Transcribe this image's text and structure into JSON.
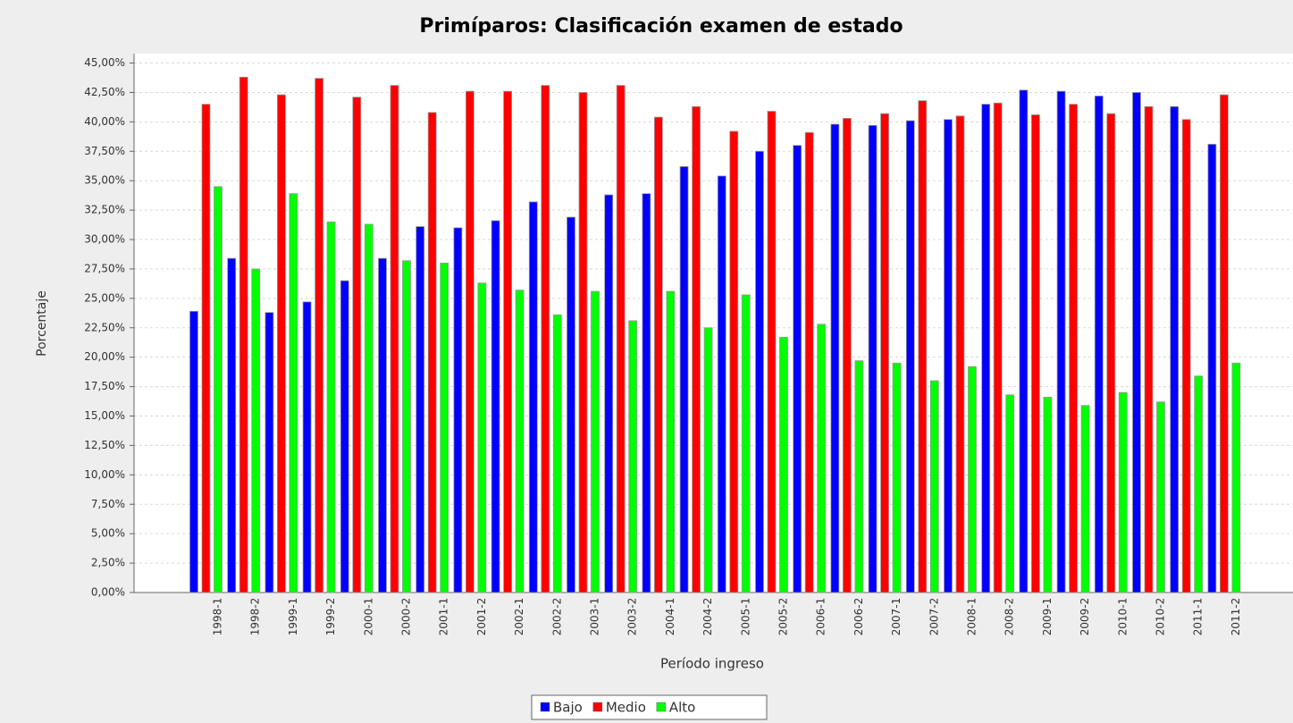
{
  "chart_data": {
    "type": "bar",
    "title": "Primíparos: Clasificación examen de estado",
    "x_label": "Período ingreso",
    "y_label": "Porcentaje",
    "categories": [
      "1998-1",
      "1998-2",
      "1999-1",
      "1999-2",
      "2000-1",
      "2000-2",
      "2001-1",
      "2001-2",
      "2002-1",
      "2002-2",
      "2003-1",
      "2003-2",
      "2004-1",
      "2004-2",
      "2005-1",
      "2005-2",
      "2006-1",
      "2006-2",
      "2007-1",
      "2007-2",
      "2008-1",
      "2008-2",
      "2009-1",
      "2009-2",
      "2010-1",
      "2010-2",
      "2011-1",
      "2011-2"
    ],
    "series": [
      {
        "name": "Bajo",
        "color": "#0000ff",
        "values": [
          23.9,
          28.4,
          23.8,
          24.7,
          26.5,
          28.4,
          31.1,
          31.0,
          31.6,
          33.2,
          31.9,
          33.8,
          33.9,
          36.2,
          35.4,
          37.5,
          38.0,
          39.8,
          39.7,
          40.1,
          40.2,
          41.5,
          42.7,
          42.6,
          42.2,
          42.5,
          41.3,
          38.1
        ]
      },
      {
        "name": "Medio",
        "color": "#ff0000",
        "values": [
          41.5,
          43.8,
          42.3,
          43.7,
          42.1,
          43.1,
          40.8,
          42.6,
          42.6,
          43.1,
          42.5,
          43.1,
          40.4,
          41.3,
          39.2,
          40.9,
          39.1,
          40.3,
          40.7,
          41.8,
          40.5,
          41.6,
          40.6,
          41.5,
          40.7,
          41.3,
          40.2,
          42.3
        ]
      },
      {
        "name": "Alto",
        "color": "#00ff00",
        "values": [
          34.5,
          27.5,
          33.9,
          31.5,
          31.3,
          28.2,
          28.0,
          26.3,
          25.7,
          23.6,
          25.6,
          23.1,
          25.6,
          22.5,
          25.3,
          21.7,
          22.8,
          19.7,
          19.5,
          18.0,
          19.2,
          16.8,
          16.6,
          15.9,
          17.0,
          16.2,
          18.4,
          19.5
        ]
      }
    ],
    "ylim": [
      0,
      45.8
    ],
    "yticks": [
      {
        "value": 0,
        "label": "0,00%"
      },
      {
        "value": 2.5,
        "label": "2,50%"
      },
      {
        "value": 5,
        "label": "5,00%"
      },
      {
        "value": 7.5,
        "label": "7,50%"
      },
      {
        "value": 10,
        "label": "10,00%"
      },
      {
        "value": 12.5,
        "label": "12,50%"
      },
      {
        "value": 15,
        "label": "15,00%"
      },
      {
        "value": 17.5,
        "label": "17,50%"
      },
      {
        "value": 20,
        "label": "20,00%"
      },
      {
        "value": 22.5,
        "label": "22,50%"
      },
      {
        "value": 25,
        "label": "25,00%"
      },
      {
        "value": 27.5,
        "label": "27,50%"
      },
      {
        "value": 30,
        "label": "30,00%"
      },
      {
        "value": 32.5,
        "label": "32,50%"
      },
      {
        "value": 35,
        "label": "35,00%"
      },
      {
        "value": 37.5,
        "label": "37,50%"
      },
      {
        "value": 40,
        "label": "40,00%"
      },
      {
        "value": 42.5,
        "label": "42,50%"
      },
      {
        "value": 45,
        "label": "45,00%"
      }
    ],
    "grid": true,
    "legend": "bottom"
  }
}
